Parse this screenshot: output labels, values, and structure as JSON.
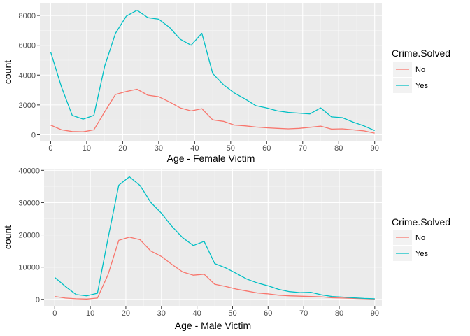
{
  "legend": {
    "title": "Crime.Solved",
    "items": [
      {
        "label": "No",
        "color": "#F8766D"
      },
      {
        "label": "Yes",
        "color": "#00BFC4"
      }
    ]
  },
  "chart_data": [
    {
      "type": "line",
      "xlabel": "Age - Female Victim",
      "ylabel": "count",
      "xlim": [
        -3,
        92
      ],
      "ylim": [
        -400,
        8800
      ],
      "xticks": [
        0,
        10,
        20,
        30,
        40,
        50,
        60,
        70,
        80,
        90
      ],
      "yticks": [
        0,
        2000,
        4000,
        6000,
        8000
      ],
      "x": [
        0,
        3,
        6,
        9,
        12,
        15,
        18,
        21,
        24,
        27,
        30,
        33,
        36,
        39,
        42,
        45,
        48,
        51,
        54,
        57,
        60,
        63,
        66,
        69,
        72,
        75,
        78,
        81,
        84,
        87,
        90
      ],
      "series": [
        {
          "name": "No",
          "color": "#F8766D",
          "values": [
            650,
            330,
            220,
            200,
            330,
            1550,
            2700,
            2900,
            3050,
            2650,
            2550,
            2200,
            1800,
            1600,
            1750,
            1000,
            900,
            650,
            600,
            520,
            470,
            430,
            400,
            430,
            500,
            580,
            380,
            400,
            330,
            260,
            110
          ]
        },
        {
          "name": "Yes",
          "color": "#00BFC4",
          "values": [
            5550,
            3200,
            1300,
            1050,
            1300,
            4600,
            6800,
            7950,
            8350,
            7850,
            7750,
            7200,
            6400,
            6000,
            6800,
            4100,
            3350,
            2800,
            2400,
            1950,
            1800,
            1600,
            1500,
            1450,
            1400,
            1800,
            1200,
            1150,
            850,
            600,
            280
          ]
        }
      ]
    },
    {
      "type": "line",
      "xlabel": "Age - Male Victim",
      "ylabel": "count",
      "xlim": [
        -3,
        92
      ],
      "ylim": [
        -2000,
        40500
      ],
      "xticks": [
        0,
        10,
        20,
        30,
        40,
        50,
        60,
        70,
        80,
        90
      ],
      "yticks": [
        0,
        10000,
        20000,
        30000,
        40000
      ],
      "x": [
        0,
        3,
        6,
        9,
        12,
        15,
        18,
        21,
        24,
        27,
        30,
        33,
        36,
        39,
        42,
        45,
        48,
        51,
        54,
        57,
        60,
        63,
        66,
        69,
        72,
        75,
        78,
        81,
        84,
        87,
        90
      ],
      "series": [
        {
          "name": "No",
          "color": "#F8766D",
          "values": [
            900,
            400,
            200,
            100,
            400,
            7700,
            18300,
            19300,
            18500,
            15000,
            13300,
            10800,
            8500,
            7500,
            7800,
            4700,
            4000,
            3200,
            2600,
            2000,
            1700,
            1300,
            1100,
            1000,
            900,
            800,
            500,
            400,
            300,
            200,
            100
          ]
        },
        {
          "name": "Yes",
          "color": "#00BFC4",
          "values": [
            6800,
            4000,
            1500,
            1100,
            1900,
            19000,
            35400,
            38000,
            35300,
            30100,
            26700,
            22600,
            19100,
            16700,
            18000,
            11100,
            9800,
            8100,
            6300,
            5100,
            4200,
            3100,
            2400,
            2100,
            2200,
            1400,
            900,
            700,
            500,
            300,
            200
          ]
        }
      ]
    }
  ]
}
